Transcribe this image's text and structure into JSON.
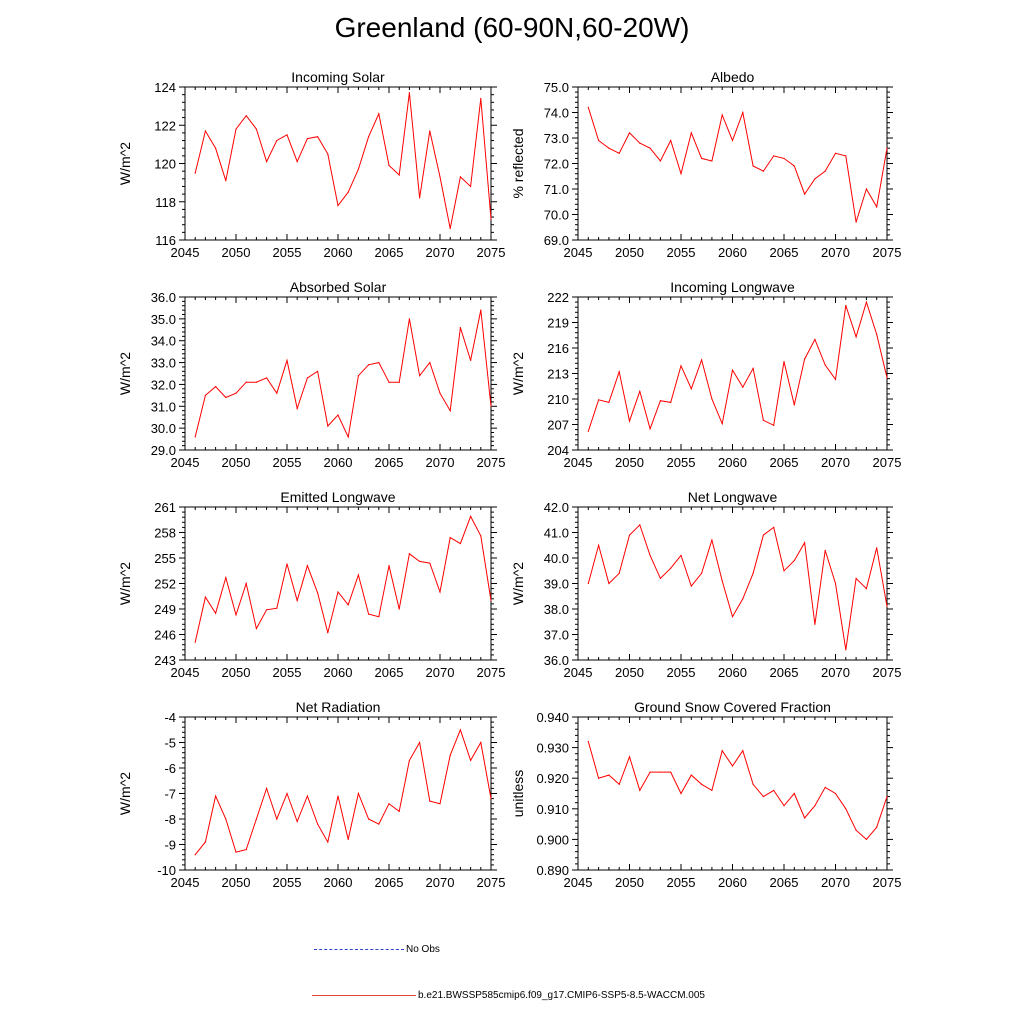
{
  "figure_title": "Greenland (60-90N,60-20W)",
  "colors": {
    "model_line": "#ff0000",
    "obs_line": "#3344cc",
    "axis": "#000000"
  },
  "legend": {
    "obs_label": "No Obs",
    "model_label": "b.e21.BWSSP585cmip6.f09_g17.CMIP6-SSP5-8.5-WACCM.005"
  },
  "chart_data": [
    {
      "type": "line",
      "title": "Incoming Solar",
      "ylabel": "W/m^2",
      "xlabel": "",
      "xlim": [
        2045,
        2075
      ],
      "ylim": [
        116,
        124
      ],
      "yticks": [
        116,
        118,
        120,
        122,
        124
      ],
      "ytick_labels": [
        "116",
        "118",
        "120",
        "122",
        "124"
      ],
      "xticks": [
        2045,
        2050,
        2055,
        2060,
        2065,
        2070,
        2075
      ],
      "x": [
        2046,
        2047,
        2048,
        2049,
        2050,
        2051,
        2052,
        2053,
        2054,
        2055,
        2056,
        2057,
        2058,
        2059,
        2060,
        2061,
        2062,
        2063,
        2064,
        2065,
        2066,
        2067,
        2068,
        2069,
        2070,
        2071,
        2072,
        2073,
        2074,
        2075
      ],
      "values": [
        119.5,
        121.7,
        120.8,
        119.1,
        121.8,
        122.5,
        121.8,
        120.1,
        121.2,
        121.5,
        120.1,
        121.3,
        121.4,
        120.5,
        117.8,
        118.5,
        119.7,
        121.4,
        122.6,
        119.9,
        119.4,
        123.7,
        118.2,
        121.7,
        119.3,
        116.6,
        119.3,
        118.8,
        123.4,
        117.1
      ]
    },
    {
      "type": "line",
      "title": "Albedo",
      "ylabel": "% reflected",
      "xlabel": "",
      "xlim": [
        2045,
        2075
      ],
      "ylim": [
        69.0,
        75.0
      ],
      "yticks": [
        69,
        70,
        71,
        72,
        73,
        74,
        75
      ],
      "ytick_labels": [
        "69.0",
        "70.0",
        "71.0",
        "72.0",
        "73.0",
        "74.0",
        "75.0"
      ],
      "xticks": [
        2045,
        2050,
        2055,
        2060,
        2065,
        2070,
        2075
      ],
      "x": [
        2046,
        2047,
        2048,
        2049,
        2050,
        2051,
        2052,
        2053,
        2054,
        2055,
        2056,
        2057,
        2058,
        2059,
        2060,
        2061,
        2062,
        2063,
        2064,
        2065,
        2066,
        2067,
        2068,
        2069,
        2070,
        2071,
        2072,
        2073,
        2074,
        2075
      ],
      "values": [
        74.2,
        72.9,
        72.6,
        72.4,
        73.2,
        72.8,
        72.6,
        72.1,
        72.9,
        71.6,
        73.2,
        72.2,
        72.1,
        73.9,
        72.9,
        74.0,
        71.9,
        71.7,
        72.3,
        72.2,
        71.9,
        70.8,
        71.4,
        71.7,
        72.4,
        72.3,
        69.7,
        71.0,
        70.3,
        72.6
      ]
    },
    {
      "type": "line",
      "title": "Absorbed Solar",
      "ylabel": "W/m^2",
      "xlabel": "",
      "xlim": [
        2045,
        2075
      ],
      "ylim": [
        29.0,
        36.0
      ],
      "yticks": [
        29,
        30,
        31,
        32,
        33,
        34,
        35,
        36
      ],
      "ytick_labels": [
        "29.0",
        "30.0",
        "31.0",
        "32.0",
        "33.0",
        "34.0",
        "35.0",
        "36.0"
      ],
      "xticks": [
        2045,
        2050,
        2055,
        2060,
        2065,
        2070,
        2075
      ],
      "x": [
        2046,
        2047,
        2048,
        2049,
        2050,
        2051,
        2052,
        2053,
        2054,
        2055,
        2056,
        2057,
        2058,
        2059,
        2060,
        2061,
        2062,
        2063,
        2064,
        2065,
        2066,
        2067,
        2068,
        2069,
        2070,
        2071,
        2072,
        2073,
        2074,
        2075
      ],
      "values": [
        29.6,
        31.5,
        31.9,
        31.4,
        31.6,
        32.1,
        32.1,
        32.3,
        31.6,
        33.1,
        30.9,
        32.3,
        32.6,
        30.1,
        30.6,
        29.6,
        32.4,
        32.9,
        33.0,
        32.1,
        32.1,
        35.0,
        32.4,
        33.0,
        31.6,
        30.8,
        34.6,
        33.1,
        35.4,
        31.0
      ]
    },
    {
      "type": "line",
      "title": "Incoming Longwave",
      "ylabel": "W/m^2",
      "xlabel": "",
      "xlim": [
        2045,
        2075
      ],
      "ylim": [
        204,
        222
      ],
      "yticks": [
        204,
        207,
        210,
        213,
        216,
        219,
        222
      ],
      "ytick_labels": [
        "204",
        "207",
        "210",
        "213",
        "216",
        "219",
        "222"
      ],
      "xticks": [
        2045,
        2050,
        2055,
        2060,
        2065,
        2070,
        2075
      ],
      "x": [
        2046,
        2047,
        2048,
        2049,
        2050,
        2051,
        2052,
        2053,
        2054,
        2055,
        2056,
        2057,
        2058,
        2059,
        2060,
        2061,
        2062,
        2063,
        2064,
        2065,
        2066,
        2067,
        2068,
        2069,
        2070,
        2071,
        2072,
        2073,
        2074,
        2075
      ],
      "values": [
        206.2,
        209.9,
        209.6,
        213.2,
        207.4,
        210.9,
        206.5,
        209.8,
        209.6,
        213.9,
        211.2,
        214.6,
        210.0,
        207.1,
        213.4,
        211.4,
        213.6,
        207.5,
        206.9,
        214.4,
        209.3,
        214.7,
        217.0,
        214.0,
        212.3,
        221.0,
        217.3,
        221.4,
        217.6,
        212.5
      ]
    },
    {
      "type": "line",
      "title": "Emitted Longwave",
      "ylabel": "W/m^2",
      "xlabel": "",
      "xlim": [
        2045,
        2075
      ],
      "ylim": [
        243,
        261
      ],
      "yticks": [
        243,
        246,
        249,
        252,
        255,
        258,
        261
      ],
      "ytick_labels": [
        "243",
        "246",
        "249",
        "252",
        "255",
        "258",
        "261"
      ],
      "xticks": [
        2045,
        2050,
        2055,
        2060,
        2065,
        2070,
        2075
      ],
      "x": [
        2046,
        2047,
        2048,
        2049,
        2050,
        2051,
        2052,
        2053,
        2054,
        2055,
        2056,
        2057,
        2058,
        2059,
        2060,
        2061,
        2062,
        2063,
        2064,
        2065,
        2066,
        2067,
        2068,
        2069,
        2070,
        2071,
        2072,
        2073,
        2074,
        2075
      ],
      "values": [
        245.1,
        250.4,
        248.5,
        252.7,
        248.3,
        252.0,
        246.7,
        248.9,
        249.1,
        254.3,
        250.0,
        254.1,
        250.9,
        246.2,
        251.0,
        249.5,
        253.0,
        248.4,
        248.1,
        254.1,
        249.0,
        255.5,
        254.6,
        254.4,
        251.0,
        257.4,
        256.7,
        259.9,
        257.6,
        250.0
      ]
    },
    {
      "type": "line",
      "title": "Net Longwave",
      "ylabel": "W/m^2",
      "xlabel": "",
      "xlim": [
        2045,
        2075
      ],
      "ylim": [
        36.0,
        42.0
      ],
      "yticks": [
        36,
        37,
        38,
        39,
        40,
        41,
        42
      ],
      "ytick_labels": [
        "36.0",
        "37.0",
        "38.0",
        "39.0",
        "40.0",
        "41.0",
        "42.0"
      ],
      "xticks": [
        2045,
        2050,
        2055,
        2060,
        2065,
        2070,
        2075
      ],
      "x": [
        2046,
        2047,
        2048,
        2049,
        2050,
        2051,
        2052,
        2053,
        2054,
        2055,
        2056,
        2057,
        2058,
        2059,
        2060,
        2061,
        2062,
        2063,
        2064,
        2065,
        2066,
        2067,
        2068,
        2069,
        2070,
        2071,
        2072,
        2073,
        2074,
        2075
      ],
      "values": [
        39.0,
        40.5,
        39.0,
        39.4,
        40.9,
        41.3,
        40.1,
        39.2,
        39.6,
        40.1,
        38.9,
        39.4,
        40.7,
        39.1,
        37.7,
        38.4,
        39.4,
        40.9,
        41.2,
        39.5,
        39.9,
        40.6,
        37.4,
        40.3,
        39.0,
        36.4,
        39.2,
        38.8,
        40.4,
        38.1
      ]
    },
    {
      "type": "line",
      "title": "Net Radiation",
      "ylabel": "W/m^2",
      "xlabel": "",
      "xlim": [
        2045,
        2075
      ],
      "ylim": [
        -10,
        -4
      ],
      "yticks": [
        -10,
        -9,
        -8,
        -7,
        -6,
        -5,
        -4
      ],
      "ytick_labels": [
        "-10",
        "-9",
        "-8",
        "-7",
        "-6",
        "-5",
        "-4"
      ],
      "xticks": [
        2045,
        2050,
        2055,
        2060,
        2065,
        2070,
        2075
      ],
      "x": [
        2046,
        2047,
        2048,
        2049,
        2050,
        2051,
        2052,
        2053,
        2054,
        2055,
        2056,
        2057,
        2058,
        2059,
        2060,
        2061,
        2062,
        2063,
        2064,
        2065,
        2066,
        2067,
        2068,
        2069,
        2070,
        2071,
        2072,
        2073,
        2074,
        2075
      ],
      "values": [
        -9.4,
        -8.9,
        -7.1,
        -8.0,
        -9.3,
        -9.2,
        -8.0,
        -6.8,
        -8.0,
        -7.0,
        -8.1,
        -7.1,
        -8.2,
        -8.9,
        -7.1,
        -8.8,
        -7.0,
        -8.0,
        -8.2,
        -7.4,
        -7.7,
        -5.7,
        -5.0,
        -7.3,
        -7.4,
        -5.5,
        -4.5,
        -5.7,
        -5.0,
        -7.2
      ]
    },
    {
      "type": "line",
      "title": "Ground Snow Covered Fraction",
      "ylabel": "unitless",
      "xlabel": "",
      "xlim": [
        2045,
        2075
      ],
      "ylim": [
        0.89,
        0.94
      ],
      "yticks": [
        0.89,
        0.9,
        0.91,
        0.92,
        0.93,
        0.94
      ],
      "ytick_labels": [
        "0.890",
        "0.900",
        "0.910",
        "0.920",
        "0.930",
        "0.940"
      ],
      "xticks": [
        2045,
        2050,
        2055,
        2060,
        2065,
        2070,
        2075
      ],
      "x": [
        2046,
        2047,
        2048,
        2049,
        2050,
        2051,
        2052,
        2053,
        2054,
        2055,
        2056,
        2057,
        2058,
        2059,
        2060,
        2061,
        2062,
        2063,
        2064,
        2065,
        2066,
        2067,
        2068,
        2069,
        2070,
        2071,
        2072,
        2073,
        2074,
        2075
      ],
      "values": [
        0.932,
        0.92,
        0.921,
        0.918,
        0.927,
        0.916,
        0.922,
        0.922,
        0.922,
        0.915,
        0.921,
        0.918,
        0.916,
        0.929,
        0.924,
        0.929,
        0.918,
        0.914,
        0.916,
        0.911,
        0.915,
        0.907,
        0.911,
        0.917,
        0.915,
        0.91,
        0.903,
        0.9,
        0.904,
        0.914
      ]
    }
  ]
}
